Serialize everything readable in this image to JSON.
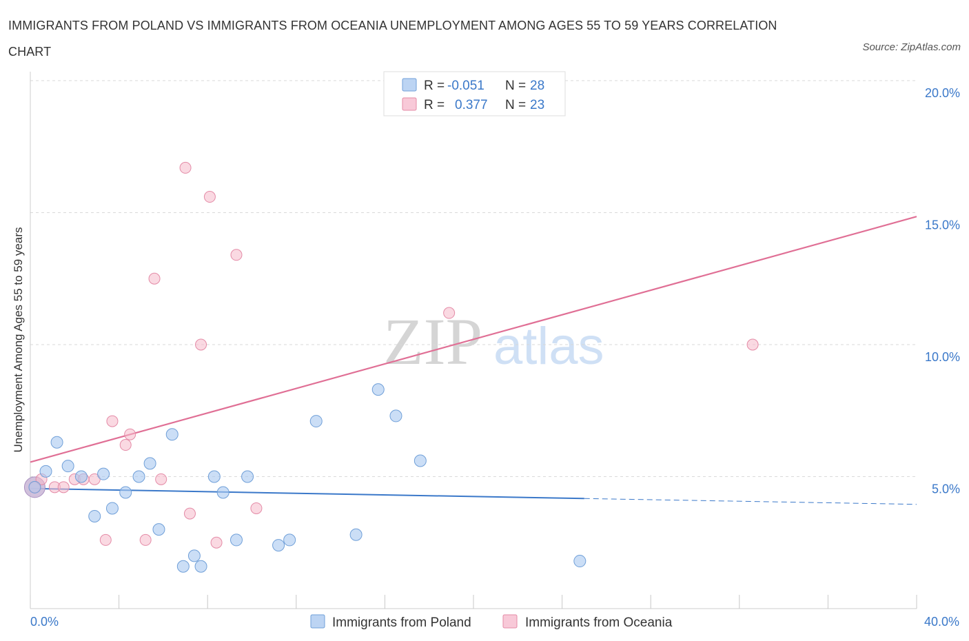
{
  "header": {
    "title": "IMMIGRANTS FROM POLAND VS IMMIGRANTS FROM OCEANIA UNEMPLOYMENT AMONG AGES 55 TO 59 YEARS CORRELATION CHART",
    "source": "Source: ZipAtlas.com"
  },
  "watermark": {
    "zip": "ZIP",
    "atlas": "atlas"
  },
  "colors": {
    "poland_fill": "#a9c8f0",
    "poland_stroke": "#6f9fd8",
    "poland_line": "#3a78c9",
    "oceania_fill": "#f5b9cb",
    "oceania_stroke": "#e48aa6",
    "oceania_line": "#e06f95",
    "grid": "#d9d9d9",
    "axis_text": "#3a78c9"
  },
  "legend": {
    "rows": [
      {
        "r_label": "R = ",
        "r_value": "-0.051",
        "n_label": "N = ",
        "n_value": "28"
      },
      {
        "r_label": "R = ",
        "r_value": "0.377",
        "n_label": "N = ",
        "n_value": "23"
      }
    ]
  },
  "chart_data": {
    "type": "scatter",
    "title": "Immigrants from Poland vs Immigrants from Oceania Unemployment Among Ages 55 to 59 years Correlation Chart",
    "xlabel": "",
    "ylabel": "Unemployment Among Ages 55 to 59 years",
    "xlim": [
      0,
      40
    ],
    "ylim": [
      0,
      20
    ],
    "x_tick_labels": [
      "0.0%",
      "40.0%"
    ],
    "y_ticks": [
      5,
      10,
      15,
      20
    ],
    "y_tick_labels": [
      "5.0%",
      "10.0%",
      "15.0%",
      "20.0%"
    ],
    "grid": true,
    "legend_position": "top-center",
    "series": [
      {
        "name": "Immigrants from Poland",
        "R": -0.051,
        "N": 28,
        "points": [
          [
            0.2,
            4.6
          ],
          [
            0.7,
            5.2
          ],
          [
            1.2,
            6.3
          ],
          [
            1.7,
            5.4
          ],
          [
            2.3,
            5.0
          ],
          [
            2.9,
            3.5
          ],
          [
            3.3,
            5.1
          ],
          [
            3.7,
            3.8
          ],
          [
            4.3,
            4.4
          ],
          [
            4.9,
            5.0
          ],
          [
            5.4,
            5.5
          ],
          [
            5.8,
            3.0
          ],
          [
            6.4,
            6.6
          ],
          [
            6.9,
            1.6
          ],
          [
            7.4,
            2.0
          ],
          [
            7.7,
            1.6
          ],
          [
            8.3,
            5.0
          ],
          [
            8.7,
            4.4
          ],
          [
            9.3,
            2.6
          ],
          [
            9.8,
            5.0
          ],
          [
            11.2,
            2.4
          ],
          [
            11.7,
            2.6
          ],
          [
            12.9,
            7.1
          ],
          [
            14.7,
            2.8
          ],
          [
            15.7,
            8.3
          ],
          [
            16.5,
            7.3
          ],
          [
            17.6,
            5.6
          ],
          [
            24.8,
            1.8
          ]
        ],
        "trend": {
          "x": [
            0,
            25
          ],
          "y": [
            4.55,
            4.17
          ],
          "dashed_extension_to": [
            40,
            3.95
          ]
        }
      },
      {
        "name": "Immigrants from Oceania",
        "R": 0.377,
        "N": 23,
        "points": [
          [
            0.2,
            4.6
          ],
          [
            0.5,
            4.9
          ],
          [
            1.1,
            4.6
          ],
          [
            1.5,
            4.6
          ],
          [
            2.0,
            4.9
          ],
          [
            2.4,
            4.9
          ],
          [
            2.9,
            4.9
          ],
          [
            3.4,
            2.6
          ],
          [
            3.7,
            7.1
          ],
          [
            4.3,
            6.2
          ],
          [
            4.5,
            6.6
          ],
          [
            5.2,
            2.6
          ],
          [
            5.6,
            12.5
          ],
          [
            5.9,
            4.9
          ],
          [
            7.0,
            16.7
          ],
          [
            7.2,
            3.6
          ],
          [
            7.7,
            10.0
          ],
          [
            8.1,
            15.6
          ],
          [
            8.4,
            2.5
          ],
          [
            9.3,
            13.4
          ],
          [
            10.2,
            3.8
          ],
          [
            18.9,
            11.2
          ],
          [
            32.6,
            10.0
          ]
        ],
        "trend": {
          "x": [
            0,
            40
          ],
          "y": [
            5.55,
            14.85
          ]
        }
      }
    ]
  },
  "bottom_legend": {
    "items": [
      {
        "label": "Immigrants from Poland"
      },
      {
        "label": "Immigrants from Oceania"
      }
    ]
  }
}
